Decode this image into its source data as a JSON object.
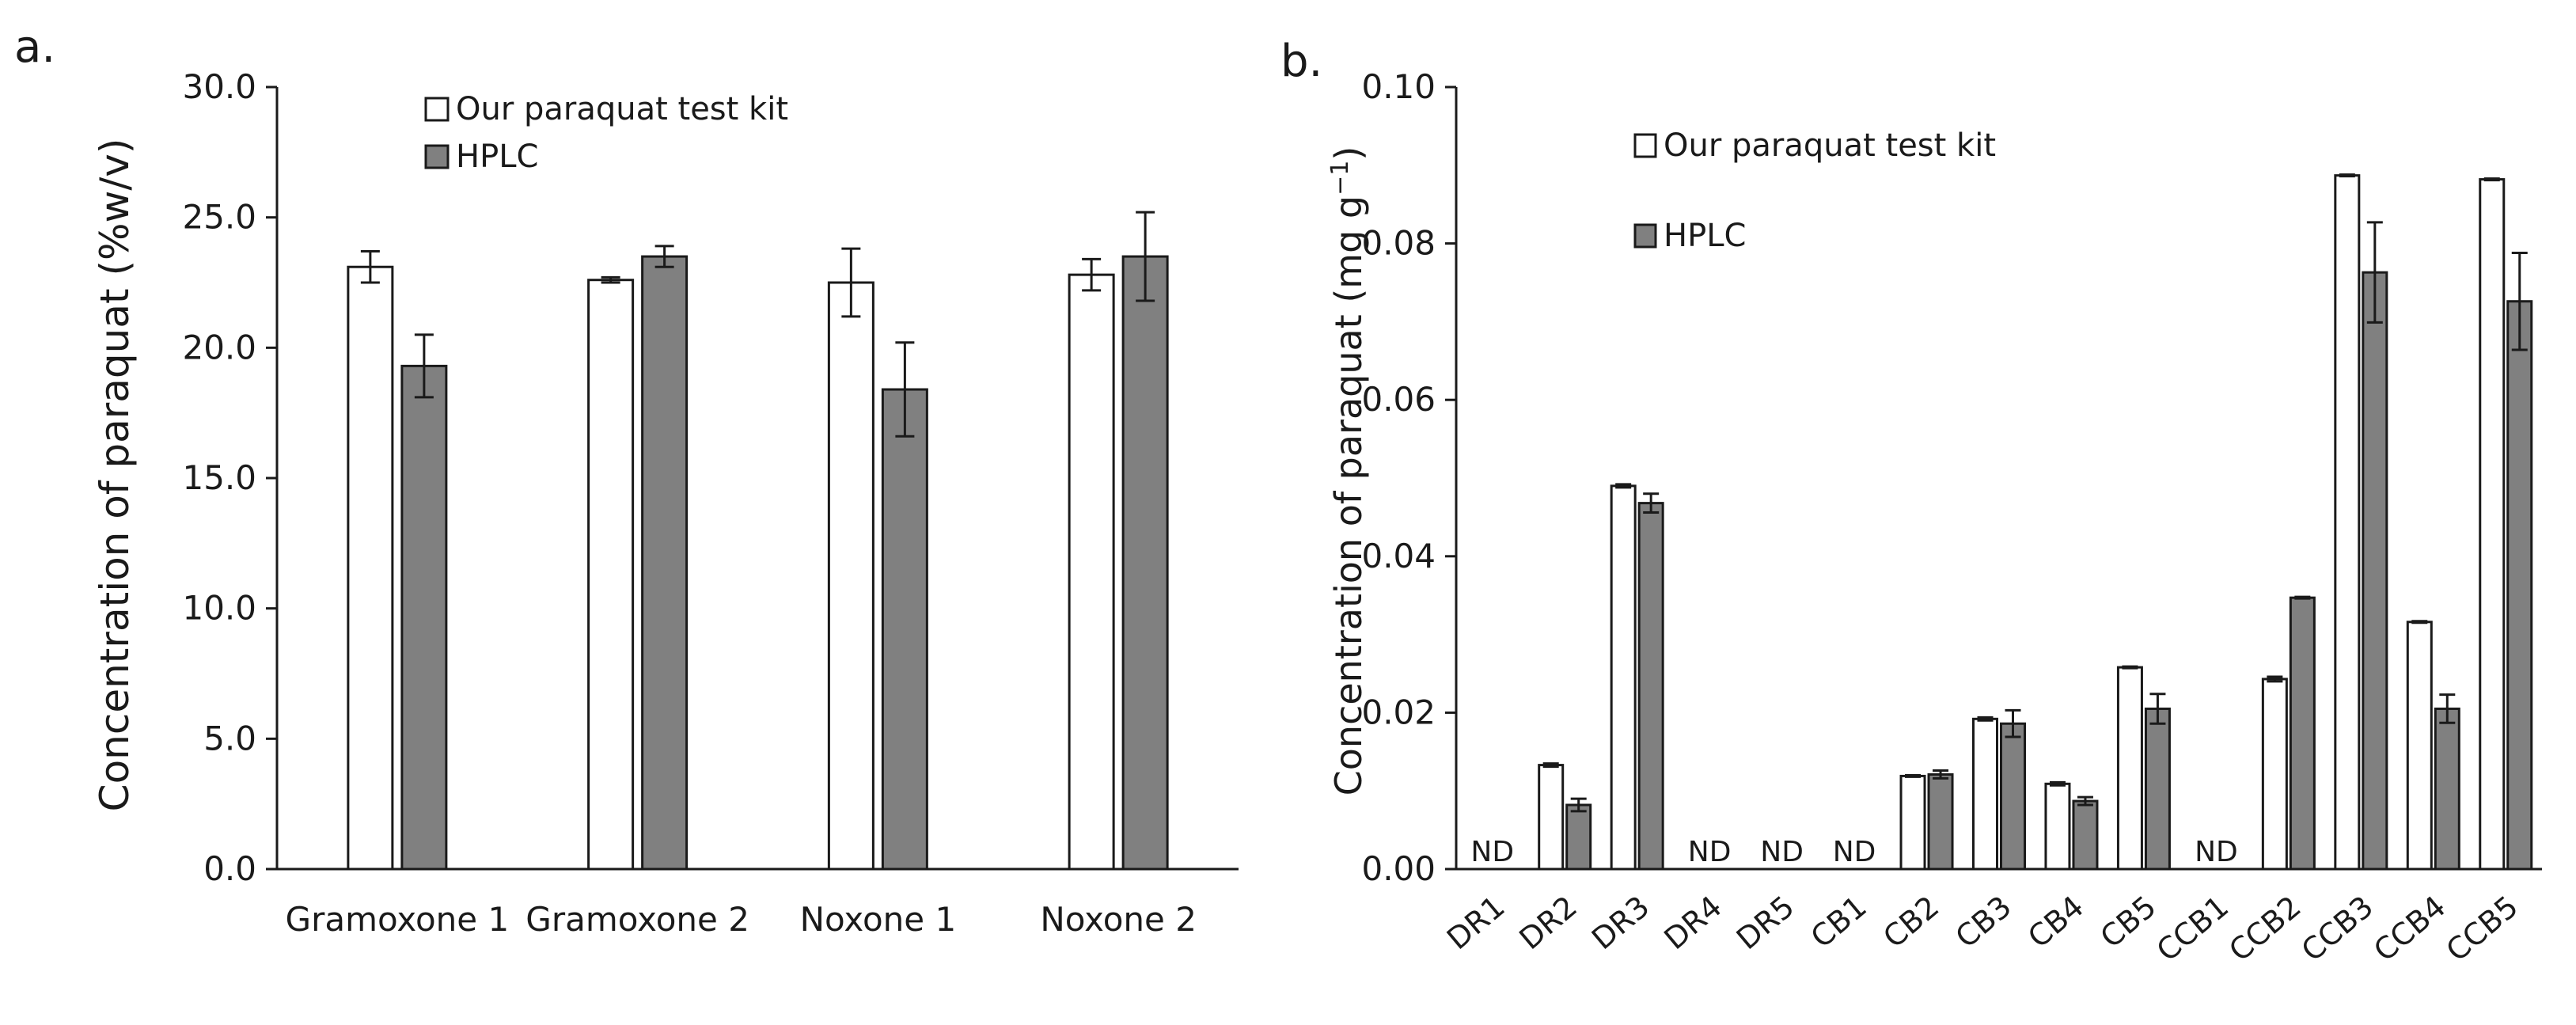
{
  "chart_data": [
    {
      "panel_label": "a.",
      "type": "bar",
      "ylabel": "Concentration of paraquat (%w/v)",
      "xlabel": "",
      "ylim": [
        0,
        30
      ],
      "yticks": [
        0,
        5,
        10,
        15,
        20,
        25,
        30
      ],
      "ytick_labels": [
        "0.0",
        "5.0",
        "10.0",
        "15.0",
        "20.0",
        "25.0",
        "30.0"
      ],
      "categories": [
        "Gramoxone 1",
        "Gramoxone 2",
        "Noxone 1",
        "Noxone 2"
      ],
      "series": [
        {
          "name": "Our paraquat test kit",
          "color": "#ffffff",
          "values": [
            23.1,
            22.6,
            22.5,
            22.8
          ],
          "errors": [
            0.6,
            0.1,
            1.3,
            0.6
          ]
        },
        {
          "name": "HPLC",
          "color": "#808080",
          "values": [
            19.3,
            23.5,
            18.4,
            23.5
          ],
          "errors": [
            1.2,
            0.4,
            1.8,
            1.7
          ]
        }
      ],
      "legend": {
        "position": "top-center",
        "entries": [
          "Our paraquat test kit",
          "HPLC"
        ]
      }
    },
    {
      "panel_label": "b.",
      "type": "bar",
      "ylabel_main": "Concentration of paraquat (mg g",
      "ylabel_sup": "−1",
      "ylabel_close": ")",
      "xlabel": "",
      "ylim": [
        0,
        0.1
      ],
      "yticks": [
        0,
        0.02,
        0.04,
        0.06,
        0.08,
        0.1
      ],
      "ytick_labels": [
        "0.00",
        "0.02",
        "0.04",
        "0.06",
        "0.08",
        "0.10"
      ],
      "categories": [
        "DR1",
        "DR2",
        "DR3",
        "DR4",
        "DR5",
        "CB1",
        "CB2",
        "CB3",
        "CB4",
        "CB5",
        "CCB1",
        "CCB2",
        "CCB3",
        "CCB4",
        "CCB5"
      ],
      "series": [
        {
          "name": "Our paraquat test kit",
          "color": "#ffffff",
          "values": [
            null,
            0.0133,
            0.049,
            null,
            null,
            null,
            0.0119,
            0.0192,
            0.0109,
            0.0258,
            null,
            0.0243,
            0.0887,
            0.0316,
            0.0882
          ],
          "errors": [
            0,
            0.0002,
            0.0002,
            0,
            0,
            0,
            0.0001,
            0.0002,
            0.0002,
            0.0001,
            0,
            0.0003,
            0.0001,
            0.0001,
            0.0001
          ]
        },
        {
          "name": "HPLC",
          "color": "#808080",
          "values": [
            null,
            0.0082,
            0.0468,
            null,
            null,
            null,
            0.0121,
            0.0186,
            0.0087,
            0.0205,
            null,
            0.0347,
            0.0763,
            0.0205,
            0.0726
          ],
          "errors": [
            0,
            0.0008,
            0.0012,
            0,
            0,
            0,
            0.0005,
            0.0017,
            0.0005,
            0.0019,
            0,
            0.0001,
            0.0064,
            0.0018,
            0.0062
          ]
        }
      ],
      "not_detected_label": "ND",
      "legend": {
        "position": "top-left",
        "entries": [
          "Our paraquat test kit",
          "HPLC"
        ]
      }
    }
  ]
}
